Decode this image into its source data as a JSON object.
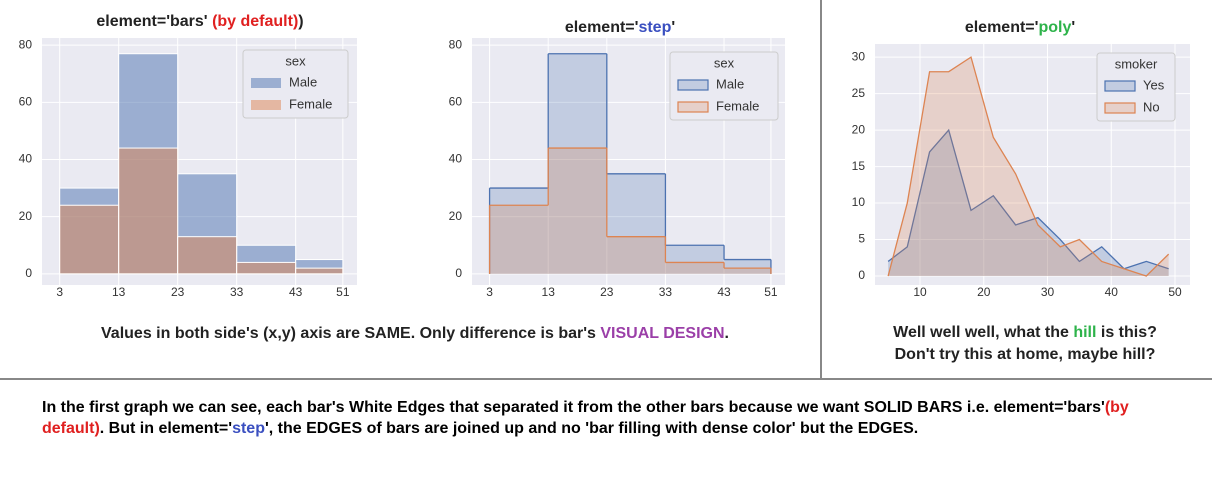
{
  "chart_data": [
    {
      "type": "histogram",
      "element": "bars",
      "title": [
        {
          "text": "element='bars' "
        },
        {
          "text": "(by default)",
          "color": "#e02020"
        },
        {
          "text": ")"
        }
      ],
      "bins": [
        3,
        13,
        23,
        33,
        43,
        51
      ],
      "series": [
        {
          "name": "Male",
          "color": "#4c72b0",
          "values": [
            30,
            77,
            35,
            10,
            5
          ]
        },
        {
          "name": "Female",
          "color": "#dd8452",
          "values": [
            24,
            44,
            13,
            4,
            2
          ]
        }
      ],
      "legend_title": "sex",
      "legend": "upper right",
      "xlim": [
        0,
        53.4
      ],
      "xticks": [
        3,
        13,
        23,
        33,
        43,
        51
      ],
      "ylim": [
        -3.9,
        82.5
      ],
      "yticks": [
        0,
        20,
        40,
        60,
        80
      ],
      "grid": true
    },
    {
      "type": "histogram",
      "element": "step",
      "title": [
        {
          "text": "element='"
        },
        {
          "text": "step",
          "color": "#3a4fc0"
        },
        {
          "text": "'"
        }
      ],
      "bins": [
        3,
        13,
        23,
        33,
        43,
        51
      ],
      "series": [
        {
          "name": "Male",
          "color": "#4c72b0",
          "values": [
            30,
            77,
            35,
            10,
            5
          ]
        },
        {
          "name": "Female",
          "color": "#dd8452",
          "values": [
            24,
            44,
            13,
            4,
            2
          ]
        }
      ],
      "legend_title": "sex",
      "legend": "upper right",
      "xlim": [
        0,
        53.4
      ],
      "xticks": [
        3,
        13,
        23,
        33,
        43,
        51
      ],
      "ylim": [
        -3.9,
        82.5
      ],
      "yticks": [
        0,
        20,
        40,
        60,
        80
      ],
      "grid": true
    },
    {
      "type": "poly",
      "title": [
        {
          "text": "element='"
        },
        {
          "text": "poly",
          "color": "#2db34a"
        },
        {
          "text": "'"
        }
      ],
      "x": [
        5,
        8,
        11.5,
        14.5,
        18,
        21.5,
        25,
        28.5,
        32,
        35,
        38.5,
        42,
        45.5,
        49
      ],
      "series": [
        {
          "name": "Yes",
          "color": "#4c72b0",
          "values": [
            2,
            4,
            17,
            20,
            9,
            11,
            7,
            8,
            5,
            2,
            4,
            1,
            2,
            1
          ]
        },
        {
          "name": "No",
          "color": "#dd8452",
          "values": [
            0,
            10,
            28,
            28,
            30,
            19,
            14,
            7,
            4,
            5,
            2,
            1,
            0,
            3
          ]
        }
      ],
      "legend_title": "smoker",
      "legend": "upper right",
      "xlim": [
        2.94,
        52.35
      ],
      "xticks": [
        10,
        20,
        30,
        40,
        50
      ],
      "ylim": [
        -1.23,
        31.8
      ],
      "yticks": [
        0,
        5,
        10,
        15,
        20,
        25,
        30
      ],
      "grid": true
    }
  ],
  "captions": {
    "left": [
      {
        "text": "Values in both side's (x,y) axis are SAME. Only difference is bar's "
      },
      {
        "text": "VISUAL DESIGN",
        "color": "#9b3fa8"
      },
      {
        "text": "."
      }
    ],
    "right_line1": [
      {
        "text": "Well well well, what the "
      },
      {
        "text": "hill",
        "color": "#2db34a"
      },
      {
        "text": " is this?"
      }
    ],
    "right_line2": [
      {
        "text": "Don't try this at home, maybe hill?"
      }
    ],
    "bottom": [
      {
        "text": "In the first graph we can see, each bar's White Edges that separated it from the other bars because we want SOLID BARS i.e. element='bars'"
      },
      {
        "text": "(by default)",
        "color": "#e02020"
      },
      {
        "text": ". But in element='"
      },
      {
        "text": "step",
        "color": "#3a4fc0"
      },
      {
        "text": "', the EDGES of bars are joined up and no 'bar filling with dense color' but the EDGES."
      }
    ]
  }
}
